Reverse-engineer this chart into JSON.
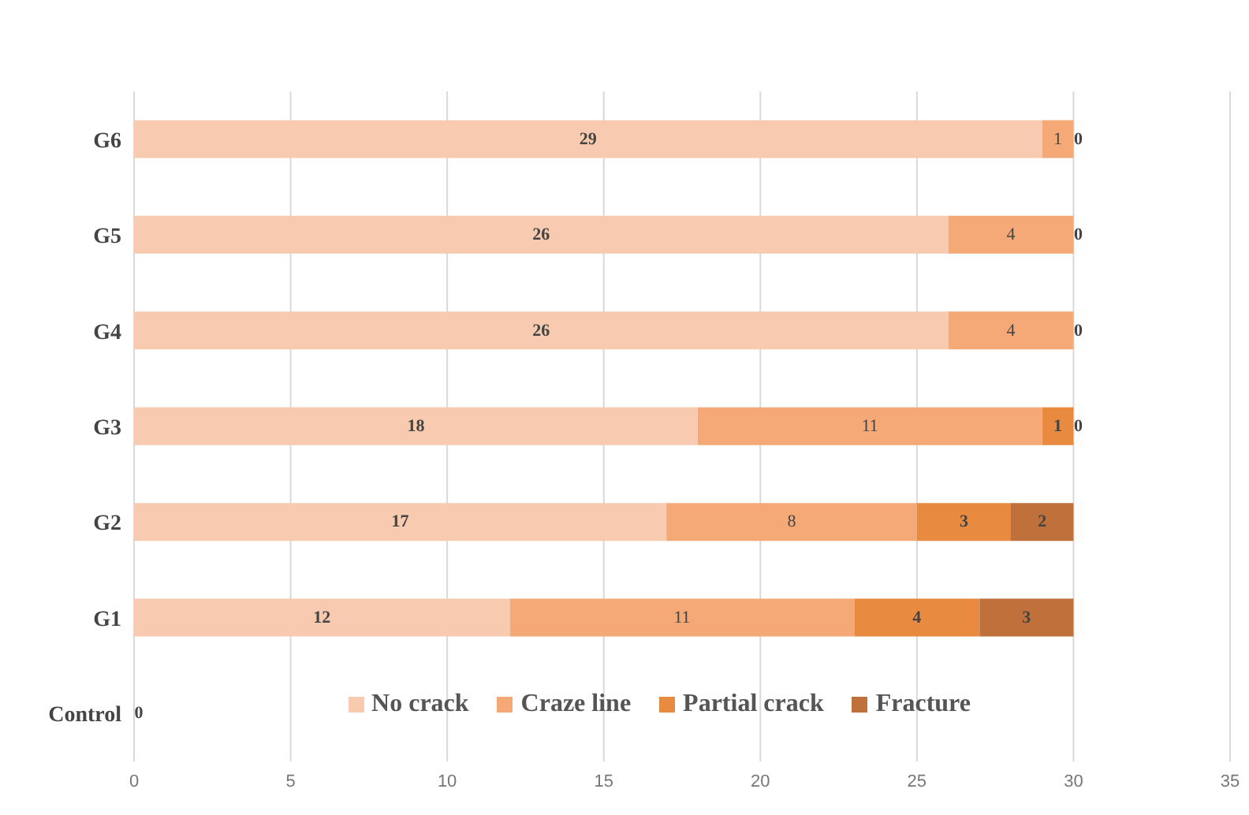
{
  "chart_data": {
    "type": "bar",
    "orientation": "horizontal",
    "stacked": true,
    "categories": [
      "G6",
      "G5",
      "G4",
      "G3",
      "G2",
      "G1",
      "Control"
    ],
    "series": [
      {
        "name": "No crack",
        "color": "#f8cbb0",
        "values": [
          29,
          26,
          26,
          18,
          17,
          12,
          0
        ],
        "value_labels": [
          "29",
          "26",
          "26",
          "18",
          "17",
          "12",
          "0"
        ]
      },
      {
        "name": "Craze line",
        "color": "#f4a977",
        "values": [
          1,
          4,
          4,
          11,
          8,
          11,
          null
        ],
        "value_labels": [
          "1",
          "4",
          "4",
          "11",
          "8",
          "11",
          null
        ]
      },
      {
        "name": "Partial crack",
        "color": "#e88b40",
        "values": [
          0,
          0,
          0,
          1,
          3,
          4,
          null
        ],
        "value_labels": [
          "0",
          "0",
          "0",
          "1",
          "3",
          "4",
          null
        ]
      },
      {
        "name": "Fracture",
        "color": "#c0703a",
        "values": [
          0,
          0,
          0,
          0,
          2,
          3,
          null
        ],
        "value_labels": [
          null,
          null,
          null,
          "0",
          "2",
          "3",
          null
        ]
      }
    ],
    "xlim": [
      0,
      35
    ],
    "xticks": [
      0,
      5,
      10,
      15,
      20,
      25,
      30,
      35
    ],
    "grid": "x",
    "legend": "bottom"
  }
}
